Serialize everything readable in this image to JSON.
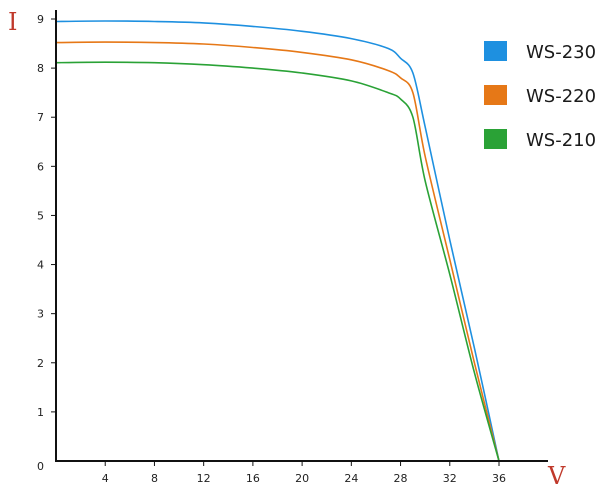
{
  "chart_data": {
    "type": "line",
    "xlabel": "V",
    "ylabel": "I",
    "xlim": [
      0,
      37
    ],
    "ylim": [
      0,
      9.2
    ],
    "x_ticks": [
      4,
      8,
      12,
      16,
      20,
      24,
      28,
      32,
      36
    ],
    "y_ticks": [
      0,
      1,
      2,
      3,
      4,
      5,
      6,
      7,
      8,
      9
    ],
    "grid": false,
    "legend": "top-right",
    "series": [
      {
        "name": "WS-230",
        "color": "#1e90e0",
        "x": [
          0,
          4,
          8,
          12,
          16,
          20,
          24,
          27,
          28,
          29,
          30,
          32,
          34,
          36
        ],
        "y": [
          8.95,
          8.96,
          8.95,
          8.92,
          8.85,
          8.75,
          8.6,
          8.4,
          8.2,
          7.9,
          6.8,
          4.5,
          2.3,
          0
        ]
      },
      {
        "name": "WS-220",
        "color": "#e67817",
        "x": [
          0,
          4,
          8,
          12,
          16,
          20,
          24,
          27,
          28,
          29,
          30,
          32,
          34,
          36
        ],
        "y": [
          8.52,
          8.53,
          8.52,
          8.49,
          8.42,
          8.32,
          8.17,
          7.95,
          7.8,
          7.5,
          6.2,
          4.1,
          2.0,
          0
        ]
      },
      {
        "name": "WS-210",
        "color": "#2aa236",
        "x": [
          0,
          4,
          8,
          12,
          16,
          20,
          24,
          27,
          28,
          29,
          30,
          32,
          34,
          36
        ],
        "y": [
          8.11,
          8.12,
          8.11,
          8.07,
          8.0,
          7.9,
          7.74,
          7.5,
          7.37,
          7.0,
          5.7,
          3.8,
          1.8,
          0
        ]
      }
    ]
  }
}
